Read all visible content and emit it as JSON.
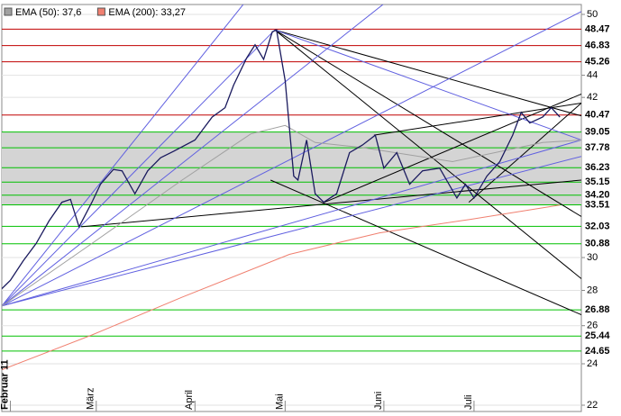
{
  "chart_data": {
    "type": "line",
    "log_scale": true,
    "xlim": [
      0,
      135
    ],
    "ylim": [
      22,
      50
    ],
    "yticks": [
      22,
      24,
      26,
      28,
      30,
      42,
      44,
      50
    ],
    "xticks": [
      {
        "value": 2,
        "label": "Februar 11"
      },
      {
        "value": 22,
        "label": "März"
      },
      {
        "value": 45,
        "label": "April"
      },
      {
        "value": 66,
        "label": "Mai"
      },
      {
        "value": 89,
        "label": "Juni"
      },
      {
        "value": 110,
        "label": "Juli"
      }
    ],
    "grid": true,
    "legend": "top-left",
    "band": [
      33.51,
      39.05
    ],
    "series": [
      {
        "color": "#1a1a5e",
        "x": [
          0,
          2,
          5,
          8,
          11,
          14,
          16,
          18,
          21,
          23,
          26,
          28,
          31,
          34,
          37,
          40,
          45,
          49,
          52,
          54,
          57,
          59,
          61,
          63,
          64,
          66,
          68,
          69,
          71,
          73,
          75,
          78,
          81,
          84,
          87,
          89,
          92,
          95,
          98,
          102,
          106,
          108,
          110,
          113,
          116,
          119,
          121,
          123,
          126,
          128,
          130
        ],
        "values": [
          28.1,
          28.6,
          29.8,
          30.9,
          32.4,
          33.7,
          33.9,
          32.0,
          33.7,
          35.0,
          36.1,
          36.0,
          34.3,
          36.0,
          37.0,
          37.5,
          38.4,
          40.3,
          41.1,
          43.1,
          45.6,
          46.9,
          45.5,
          48.2,
          48.4,
          43.5,
          35.6,
          35.3,
          38.4,
          34.3,
          33.7,
          34.3,
          37.4,
          38.0,
          38.8,
          36.2,
          37.4,
          35.0,
          36.0,
          36.2,
          34.0,
          35.0,
          34.0,
          35.6,
          36.7,
          38.8,
          40.7,
          39.8,
          40.3,
          41.1,
          40.3
        ]
      },
      {
        "name": "EMA (50): 37,6",
        "color": "#a0a0a0",
        "x": [
          0,
          21,
          42,
          58,
          66,
          73,
          84,
          105,
          126,
          135
        ],
        "values": [
          27.1,
          30.9,
          35.3,
          38.9,
          39.6,
          38.2,
          37.8,
          36.7,
          38.2,
          38.4
        ]
      },
      {
        "name": "EMA (200): 33,27",
        "color": "#f08070",
        "x": [
          0,
          21,
          42,
          67,
          88,
          109,
          130
        ],
        "values": [
          23.7,
          25.5,
          27.6,
          30.2,
          31.6,
          32.5,
          33.5
        ]
      }
    ],
    "levels": [
      {
        "value": 48.47,
        "color": "#c00000"
      },
      {
        "value": 46.83,
        "color": "#c00000"
      },
      {
        "value": 45.26,
        "color": "#c00000"
      },
      {
        "value": 40.47,
        "color": "#c00000"
      },
      {
        "value": 39.05,
        "color": "#00c000"
      },
      {
        "value": 37.78,
        "color": "#00c000"
      },
      {
        "value": 36.23,
        "color": "#00c000"
      },
      {
        "value": 35.15,
        "color": "#00c000"
      },
      {
        "value": 34.2,
        "label": "34.20",
        "color": "#00c000"
      },
      {
        "value": 33.51,
        "color": "#00c000"
      },
      {
        "value": 32.03,
        "color": "#00c000"
      },
      {
        "value": 30.88,
        "color": "#00c000"
      },
      {
        "value": 26.88,
        "color": "#00c000"
      },
      {
        "value": 25.44,
        "color": "#00c000"
      },
      {
        "value": 24.65,
        "color": "#00c000"
      }
    ],
    "trendlines": [
      {
        "color": "#000000",
        "x": [
          63.6,
          135
        ],
        "values": [
          48.4,
          40.4
        ]
      },
      {
        "color": "#000000",
        "x": [
          63.6,
          135
        ],
        "values": [
          48.4,
          32.7
        ]
      },
      {
        "color": "#000000",
        "x": [
          63.6,
          135
        ],
        "values": [
          48.4,
          28.7
        ]
      },
      {
        "color": "#000000",
        "x": [
          62.6,
          135
        ],
        "values": [
          35.3,
          26.6
        ]
      },
      {
        "color": "#000000",
        "x": [
          18.5,
          135
        ],
        "values": [
          32.0,
          35.3
        ]
      },
      {
        "color": "#000000",
        "x": [
          75.2,
          135
        ],
        "values": [
          33.7,
          42.3
        ]
      },
      {
        "color": "#000000",
        "x": [
          86.7,
          135
        ],
        "values": [
          38.8,
          41.5
        ]
      },
      {
        "color": "#000000",
        "x": [
          108.8,
          135
        ],
        "values": [
          33.7,
          41.5
        ]
      },
      {
        "color": "#6060e0",
        "x": [
          0,
          135
        ],
        "values": [
          27.1,
          38.4
        ]
      },
      {
        "color": "#6060e0",
        "x": [
          0,
          135
        ],
        "values": [
          27.1,
          37.1
        ]
      },
      {
        "color": "#6060e0",
        "x": [
          0,
          63.6
        ],
        "values": [
          27.1,
          48.4
        ]
      },
      {
        "color": "#6060e0",
        "x": [
          0,
          57
        ],
        "values": [
          27.1,
          51.5
        ]
      },
      {
        "color": "#6060e0",
        "x": [
          0,
          90
        ],
        "values": [
          27.1,
          51.5
        ]
      },
      {
        "color": "#6060e0",
        "x": [
          0,
          135
        ],
        "values": [
          27.1,
          50.3
        ]
      },
      {
        "color": "#6060e0",
        "x": [
          63.6,
          135
        ],
        "values": [
          48.4,
          38.4
        ]
      }
    ]
  }
}
